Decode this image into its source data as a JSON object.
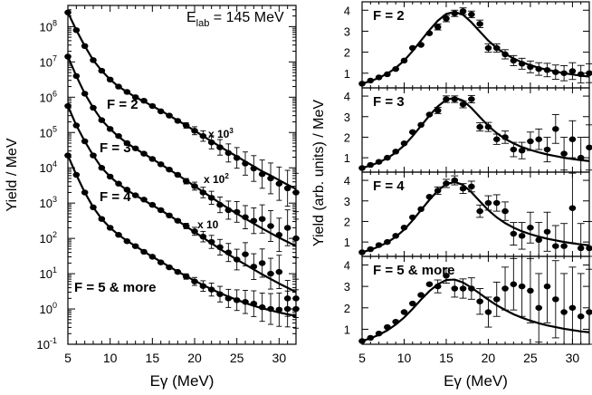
{
  "chart_data": [
    {
      "type": "scatter",
      "title": "",
      "annotation": {
        "main": "E",
        "sub": "lab",
        "rest": " = 145 MeV"
      },
      "xlabel": "Eγ (MeV)",
      "ylabel": "Yield / MeV",
      "xlim": [
        5,
        32
      ],
      "ylim_log10": [
        -1,
        8.6
      ],
      "yscale": "log",
      "xticks": [
        5,
        10,
        15,
        20,
        25,
        30
      ],
      "yticks": [
        {
          "base": "10",
          "exp": "-1"
        },
        {
          "base": "10",
          "exp": "0"
        },
        {
          "base": "10",
          "exp": "1"
        },
        {
          "base": "10",
          "exp": "2"
        },
        {
          "base": "10",
          "exp": "3"
        },
        {
          "base": "10",
          "exp": "4"
        },
        {
          "base": "10",
          "exp": "5"
        },
        {
          "base": "10",
          "exp": "6"
        },
        {
          "base": "10",
          "exp": "7"
        },
        {
          "base": "10",
          "exp": "8"
        }
      ],
      "series": [
        {
          "name": "F = 2",
          "scale_base": "x 10",
          "scale_exp": "3",
          "x": [
            5,
            6,
            7,
            8,
            9,
            10,
            11,
            12,
            13,
            14,
            15,
            16,
            17,
            18,
            19,
            20,
            21,
            22,
            23,
            24,
            25,
            26,
            27,
            28,
            29,
            30,
            31,
            32
          ],
          "log10_y": [
            8.4,
            7.9,
            7.45,
            7.05,
            6.75,
            6.5,
            6.3,
            6.15,
            6.0,
            5.9,
            5.75,
            5.6,
            5.48,
            5.33,
            5.2,
            5.05,
            4.9,
            4.72,
            4.58,
            4.42,
            4.28,
            4.12,
            3.98,
            3.82,
            3.7,
            3.55,
            3.42,
            3.3
          ],
          "fit_log10_y": [
            8.4,
            7.9,
            7.45,
            7.05,
            6.75,
            6.5,
            6.3,
            6.15,
            6.0,
            5.88,
            5.75,
            5.62,
            5.48,
            5.34,
            5.2,
            5.05,
            4.9,
            4.75,
            4.6,
            4.46,
            4.32,
            4.18,
            4.04,
            3.9,
            3.78,
            3.65,
            3.52,
            3.4
          ]
        },
        {
          "name": "F = 3",
          "scale_base": "x 10",
          "scale_exp": "2",
          "x": [
            5,
            6,
            7,
            8,
            9,
            10,
            11,
            12,
            13,
            14,
            15,
            16,
            17,
            18,
            19,
            20,
            21,
            22,
            23,
            24,
            25,
            26,
            27,
            28,
            29,
            30,
            31,
            32
          ],
          "log10_y": [
            7.15,
            6.6,
            6.1,
            5.7,
            5.35,
            5.1,
            4.9,
            4.7,
            4.55,
            4.4,
            4.25,
            4.1,
            3.95,
            3.8,
            3.62,
            3.48,
            3.3,
            3.15,
            2.95,
            2.8,
            2.75,
            2.6,
            2.5,
            2.55,
            2.35,
            2.1,
            2.3,
            2.0
          ],
          "fit_log10_y": [
            7.15,
            6.6,
            6.1,
            5.7,
            5.35,
            5.1,
            4.88,
            4.7,
            4.54,
            4.4,
            4.25,
            4.1,
            3.95,
            3.8,
            3.64,
            3.48,
            3.32,
            3.16,
            3.0,
            2.85,
            2.7,
            2.56,
            2.42,
            2.28,
            2.15,
            2.02,
            1.9,
            1.78
          ]
        },
        {
          "name": "F = 4",
          "scale_base": "x 10",
          "scale_exp": "",
          "x": [
            5,
            6,
            7,
            8,
            9,
            10,
            11,
            12,
            13,
            14,
            15,
            16,
            17,
            18,
            19,
            20,
            21,
            22,
            23,
            24,
            25,
            26,
            27,
            28,
            29,
            30,
            31,
            32
          ],
          "log10_y": [
            5.75,
            5.2,
            4.75,
            4.35,
            4.0,
            3.75,
            3.55,
            3.38,
            3.22,
            3.1,
            2.95,
            2.8,
            2.65,
            2.5,
            2.35,
            2.2,
            2.05,
            1.9,
            1.75,
            1.6,
            1.4,
            1.55,
            1.2,
            1.3,
            1.0,
            1.05,
            0.3,
            0.3
          ],
          "fit_log10_y": [
            5.75,
            5.2,
            4.75,
            4.35,
            4.0,
            3.75,
            3.54,
            3.37,
            3.22,
            3.08,
            2.94,
            2.8,
            2.65,
            2.5,
            2.34,
            2.18,
            2.02,
            1.86,
            1.7,
            1.55,
            1.4,
            1.26,
            1.12,
            0.98,
            0.85,
            0.72,
            0.6,
            0.48
          ]
        },
        {
          "name": "F = 5 & more",
          "scale_base": "",
          "scale_exp": "",
          "x": [
            5,
            6,
            7,
            8,
            9,
            10,
            11,
            12,
            13,
            14,
            15,
            16,
            17,
            18,
            19,
            20,
            21,
            22,
            23,
            24,
            25,
            26,
            27,
            28,
            29,
            30,
            31,
            32
          ],
          "log10_y": [
            4.35,
            3.8,
            3.3,
            2.88,
            2.55,
            2.3,
            2.1,
            1.92,
            1.78,
            1.62,
            1.48,
            1.32,
            1.18,
            1.05,
            0.92,
            0.78,
            0.65,
            0.55,
            0.42,
            0.3,
            0.25,
            0.2,
            0.15,
            0.05,
            0.0,
            -0.02,
            0.0,
            0.0
          ],
          "fit_log10_y": [
            4.35,
            3.8,
            3.3,
            2.88,
            2.55,
            2.3,
            2.1,
            1.93,
            1.78,
            1.63,
            1.48,
            1.34,
            1.2,
            1.06,
            0.93,
            0.8,
            0.68,
            0.56,
            0.45,
            0.35,
            0.26,
            0.17,
            0.09,
            0.02,
            -0.04,
            -0.1,
            -0.15,
            -0.2
          ],
          "label": "F = 5 & more"
        }
      ]
    },
    {
      "type": "scatter",
      "xlabel": "Eγ (MeV)",
      "ylabel": "Yield (arb. units) / MeV",
      "xlim": [
        5,
        32
      ],
      "ylim": [
        0.3,
        4.4
      ],
      "xticks": [
        5,
        10,
        15,
        20,
        25,
        30
      ],
      "yticks": [
        1,
        2,
        3,
        4
      ],
      "panels": [
        {
          "label": "F = 2",
          "x": [
            5,
            6,
            7,
            8,
            9,
            10,
            11,
            12,
            13,
            14,
            15,
            16,
            17,
            18,
            19,
            20,
            21,
            22,
            23,
            24,
            25,
            26,
            27,
            28,
            29,
            30,
            31,
            32
          ],
          "y": [
            0.5,
            0.65,
            0.8,
            0.95,
            1.2,
            1.6,
            2.2,
            2.35,
            2.9,
            3.2,
            3.6,
            3.85,
            3.95,
            3.8,
            3.35,
            2.2,
            2.2,
            1.9,
            1.6,
            1.45,
            1.3,
            1.2,
            1.15,
            1.05,
            1.0,
            1.1,
            0.95,
            1.0
          ],
          "err": [
            0.05,
            0.05,
            0.06,
            0.07,
            0.08,
            0.1,
            0.12,
            0.12,
            0.14,
            0.14,
            0.15,
            0.15,
            0.16,
            0.16,
            0.18,
            0.2,
            0.2,
            0.22,
            0.24,
            0.26,
            0.28,
            0.3,
            0.32,
            0.34,
            0.36,
            0.4,
            0.42,
            0.45
          ],
          "fit": [
            0.5,
            0.62,
            0.78,
            0.98,
            1.25,
            1.6,
            2.05,
            2.55,
            3.05,
            3.5,
            3.82,
            3.92,
            3.78,
            3.42,
            2.98,
            2.55,
            2.2,
            1.92,
            1.7,
            1.52,
            1.38,
            1.26,
            1.16,
            1.08,
            1.0,
            0.94,
            0.88,
            0.84
          ]
        },
        {
          "label": "F = 3",
          "x": [
            5,
            6,
            7,
            8,
            9,
            10,
            11,
            12,
            13,
            14,
            15,
            16,
            17,
            18,
            19,
            20,
            21,
            22,
            23,
            24,
            25,
            26,
            27,
            28,
            29,
            30,
            31,
            32
          ],
          "y": [
            0.5,
            0.65,
            0.8,
            1.0,
            1.3,
            1.7,
            2.25,
            2.6,
            3.1,
            3.3,
            3.85,
            3.85,
            3.6,
            3.85,
            2.5,
            2.5,
            1.9,
            2.0,
            1.4,
            1.35,
            1.8,
            1.9,
            1.4,
            2.4,
            1.2,
            1.9,
            1.0,
            1.5
          ],
          "err": [
            0.05,
            0.05,
            0.06,
            0.07,
            0.09,
            0.1,
            0.12,
            0.13,
            0.14,
            0.15,
            0.16,
            0.16,
            0.17,
            0.18,
            0.2,
            0.22,
            0.25,
            0.3,
            0.35,
            0.4,
            0.45,
            0.5,
            0.6,
            0.7,
            0.8,
            0.9,
            1.0,
            1.1
          ],
          "fit": [
            0.5,
            0.62,
            0.78,
            0.98,
            1.25,
            1.6,
            2.05,
            2.55,
            3.05,
            3.5,
            3.82,
            3.92,
            3.78,
            3.42,
            2.98,
            2.55,
            2.2,
            1.92,
            1.7,
            1.52,
            1.38,
            1.26,
            1.16,
            1.08,
            1.0,
            0.94,
            0.88,
            0.84
          ]
        },
        {
          "label": "F = 4",
          "x": [
            5,
            6,
            7,
            8,
            9,
            10,
            11,
            12,
            13,
            14,
            15,
            16,
            17,
            18,
            19,
            20,
            21,
            22,
            23,
            24,
            25,
            26,
            27,
            28,
            29,
            30,
            31,
            32
          ],
          "y": [
            0.5,
            0.65,
            0.85,
            1.0,
            1.3,
            1.7,
            2.2,
            2.6,
            3.2,
            3.5,
            3.85,
            4.0,
            3.6,
            3.7,
            2.5,
            2.9,
            2.9,
            2.5,
            1.4,
            1.3,
            1.7,
            1.1,
            1.5,
            0.8,
            0.8,
            2.65,
            0.7,
            0.7
          ],
          "err": [
            0.05,
            0.06,
            0.07,
            0.08,
            0.1,
            0.12,
            0.14,
            0.15,
            0.16,
            0.18,
            0.2,
            0.22,
            0.24,
            0.26,
            0.3,
            0.35,
            0.4,
            0.45,
            0.55,
            0.65,
            0.75,
            0.85,
            0.95,
            1.0,
            1.1,
            1.7,
            1.2,
            1.3
          ],
          "fit": [
            0.5,
            0.62,
            0.78,
            0.98,
            1.25,
            1.6,
            2.05,
            2.55,
            3.05,
            3.5,
            3.82,
            3.92,
            3.78,
            3.42,
            2.98,
            2.55,
            2.2,
            1.92,
            1.7,
            1.52,
            1.38,
            1.26,
            1.16,
            1.08,
            1.0,
            0.94,
            0.88,
            0.84
          ]
        },
        {
          "label": "F = 5 & more",
          "x": [
            5,
            6,
            7,
            8,
            9,
            10,
            11,
            12,
            13,
            14,
            15,
            16,
            17,
            18,
            19,
            20,
            21,
            22,
            23,
            24,
            25,
            26,
            27,
            28,
            29,
            30,
            31,
            32
          ],
          "y": [
            0.45,
            0.6,
            0.8,
            1.1,
            1.35,
            1.8,
            2.2,
            2.6,
            3.1,
            3.0,
            3.5,
            2.9,
            2.9,
            2.9,
            2.3,
            1.8,
            2.4,
            2.9,
            3.1,
            3.0,
            2.8,
            2.0,
            3.0,
            2.4,
            1.8,
            2.0,
            1.6,
            1.8
          ],
          "err": [
            0.05,
            0.06,
            0.07,
            0.1,
            0.12,
            0.15,
            0.18,
            0.22,
            0.26,
            0.3,
            0.35,
            0.4,
            0.45,
            0.5,
            0.6,
            0.7,
            0.8,
            1.0,
            1.2,
            1.4,
            1.5,
            1.6,
            1.7,
            1.8,
            1.8,
            1.9,
            2.0,
            2.0
          ],
          "fit": [
            0.45,
            0.58,
            0.74,
            0.95,
            1.22,
            1.55,
            1.95,
            2.38,
            2.78,
            3.1,
            3.3,
            3.32,
            3.18,
            2.94,
            2.66,
            2.38,
            2.12,
            1.9,
            1.7,
            1.54,
            1.4,
            1.28,
            1.18,
            1.1,
            1.02,
            0.96,
            0.9,
            0.86
          ]
        }
      ]
    }
  ]
}
